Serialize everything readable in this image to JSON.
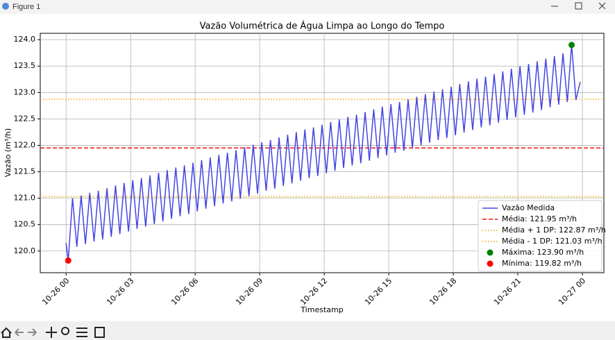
{
  "window": {
    "title": "Figure 1"
  },
  "chart_data": {
    "type": "line",
    "title": "Vazão Volumétrica de Água Limpa ao Longo do Tempo",
    "x_label": "Timestamp",
    "y_label": "Vazão (m³/h)",
    "x": [
      0,
      0.1,
      0.3,
      0.5,
      0.7,
      0.9,
      1.1,
      1.3,
      1.5,
      1.7,
      1.9,
      2.1,
      2.3,
      2.5,
      2.7,
      2.9,
      3.1,
      3.3,
      3.5,
      3.7,
      3.9,
      4.1,
      4.3,
      4.5,
      4.7,
      4.9,
      5.1,
      5.3,
      5.5,
      5.7,
      5.9,
      6.1,
      6.3,
      6.5,
      6.7,
      6.9,
      7.1,
      7.3,
      7.5,
      7.7,
      7.9,
      8.1,
      8.3,
      8.5,
      8.7,
      8.9,
      9.1,
      9.3,
      9.5,
      9.7,
      9.9,
      10.1,
      10.3,
      10.5,
      10.7,
      10.9,
      11.1,
      11.3,
      11.5,
      11.7,
      11.9,
      12.1,
      12.3,
      12.5,
      12.7,
      12.9,
      13.1,
      13.3,
      13.5,
      13.7,
      13.9,
      14.1,
      14.3,
      14.5,
      14.7,
      14.9,
      15.1,
      15.3,
      15.5,
      15.7,
      15.9,
      16.1,
      16.3,
      16.5,
      16.7,
      16.9,
      17.1,
      17.3,
      17.5,
      17.7,
      17.9,
      18.1,
      18.3,
      18.5,
      18.7,
      18.9,
      19.1,
      19.3,
      19.5,
      19.7,
      19.9,
      20.1,
      20.3,
      20.5,
      20.7,
      20.9,
      21.1,
      21.3,
      21.5,
      21.7,
      21.9,
      22.1,
      22.3,
      22.5,
      22.7,
      22.9,
      23.1,
      23.3,
      23.5,
      23.7,
      23.9
    ],
    "series": [
      {
        "name": "Vazão Medida",
        "color": "#4343e3",
        "values": [
          120.15,
          119.82,
          121.0,
          120.08,
          121.05,
          120.13,
          121.1,
          120.18,
          121.14,
          120.22,
          121.19,
          120.27,
          121.24,
          120.32,
          121.29,
          120.37,
          121.34,
          120.42,
          121.38,
          120.46,
          121.43,
          120.51,
          121.48,
          120.56,
          121.53,
          120.61,
          121.58,
          120.66,
          121.62,
          120.7,
          121.67,
          120.75,
          121.72,
          120.8,
          121.77,
          120.85,
          121.82,
          120.9,
          121.86,
          120.94,
          121.91,
          120.99,
          121.96,
          121.04,
          122.01,
          121.09,
          122.06,
          121.14,
          122.1,
          121.18,
          122.15,
          121.23,
          122.2,
          121.28,
          122.25,
          121.33,
          122.3,
          121.38,
          122.34,
          121.42,
          122.39,
          121.47,
          122.44,
          121.52,
          122.49,
          121.57,
          122.54,
          121.62,
          122.58,
          121.66,
          122.63,
          121.71,
          122.68,
          121.76,
          122.73,
          121.81,
          122.78,
          121.86,
          122.82,
          121.9,
          122.87,
          121.95,
          122.92,
          122.0,
          122.97,
          122.05,
          123.02,
          122.1,
          123.06,
          122.14,
          123.11,
          122.19,
          123.16,
          122.24,
          123.21,
          122.29,
          123.26,
          122.34,
          123.3,
          122.38,
          123.35,
          122.43,
          123.4,
          122.48,
          123.45,
          122.53,
          123.5,
          122.58,
          123.54,
          122.62,
          123.59,
          122.67,
          123.64,
          122.72,
          123.69,
          122.77,
          123.74,
          122.82,
          123.9,
          122.86,
          123.2
        ]
      }
    ],
    "reference_lines": [
      {
        "name": "Média: 121.95 m³/h",
        "value": 121.95,
        "color": "#ee1111",
        "style": "dashed"
      },
      {
        "name": "Média + 1 DP: 122.87 m³/h",
        "value": 122.87,
        "color": "#ffa500",
        "style": "dotted"
      },
      {
        "name": "Média - 1 DP: 121.03 m³/h",
        "value": 121.03,
        "color": "#ffa500",
        "style": "dotted"
      }
    ],
    "points": [
      {
        "name": "Máxima: 123.90 m³/h",
        "x": 23.5,
        "y": 123.9,
        "color": "#008000"
      },
      {
        "name": "Mínima: 119.82 m³/h",
        "x": 0.1,
        "y": 119.82,
        "color": "#ff0000"
      }
    ],
    "xlim": [
      -1.2,
      25.0
    ],
    "ylim": [
      119.59,
      124.12
    ],
    "xticks": [
      {
        "value": 0,
        "label": "10-26 00"
      },
      {
        "value": 3,
        "label": "10-26 03"
      },
      {
        "value": 6,
        "label": "10-26 06"
      },
      {
        "value": 9,
        "label": "10-26 09"
      },
      {
        "value": 12,
        "label": "10-26 12"
      },
      {
        "value": 15,
        "label": "10-26 15"
      },
      {
        "value": 18,
        "label": "10-26 18"
      },
      {
        "value": 21,
        "label": "10-26 21"
      },
      {
        "value": 24,
        "label": "10-27 00"
      }
    ],
    "yticks": [
      {
        "value": 120,
        "label": "120.0"
      },
      120.5,
      {
        "value": 121,
        "label": "121.0"
      },
      121.5,
      {
        "value": 122,
        "label": "122.0"
      },
      122.5,
      {
        "value": 123,
        "label": "123.0"
      },
      123.5,
      {
        "value": 124,
        "label": "124.0"
      }
    ],
    "grid": true,
    "legend": "lower right"
  }
}
